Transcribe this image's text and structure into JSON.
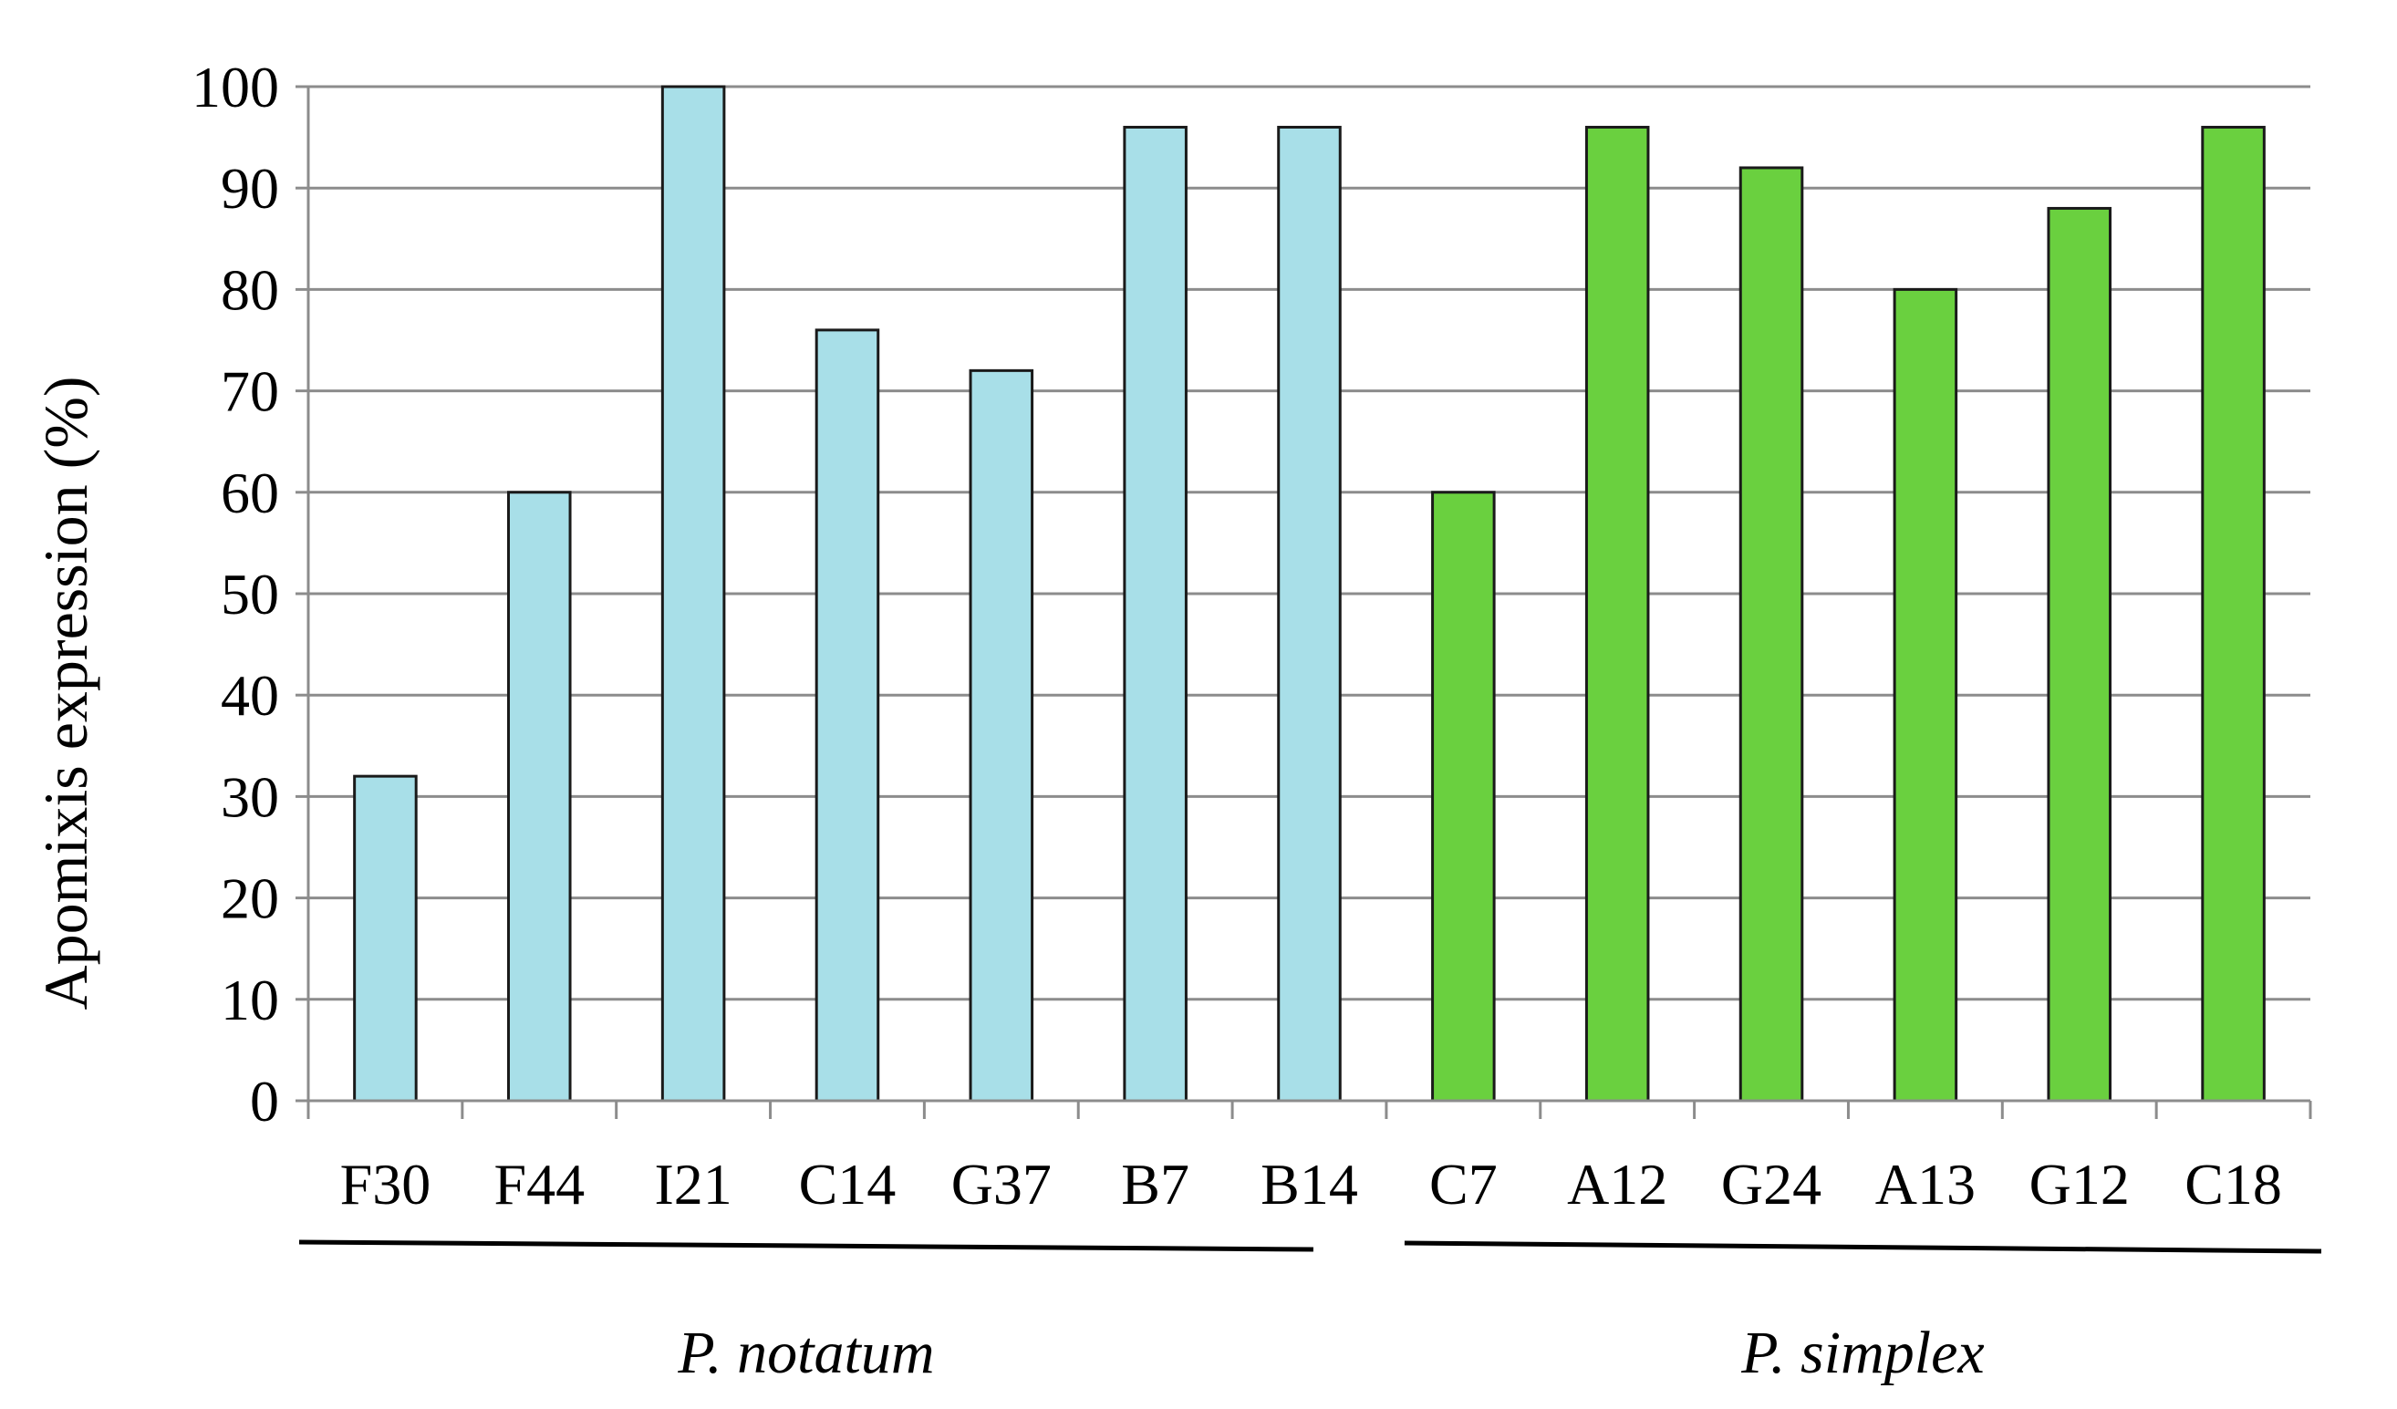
{
  "chart_data": {
    "type": "bar",
    "title": "",
    "xlabel": "",
    "ylabel": "Apomixis expression (%)",
    "ylim": [
      0,
      100
    ],
    "yticks": [
      0,
      10,
      20,
      30,
      40,
      50,
      60,
      70,
      80,
      90,
      100
    ],
    "categories": [
      "F30",
      "F44",
      "I21",
      "C14",
      "G37",
      "B7",
      "B14",
      "C7",
      "A12",
      "G24",
      "A13",
      "G12",
      "C18"
    ],
    "values": [
      32,
      60,
      100,
      76,
      72,
      96,
      96,
      60,
      96,
      92,
      80,
      88,
      96
    ],
    "groups": [
      {
        "label": "P. notatum",
        "start": 0,
        "end": 6,
        "color": "#a8dfe8"
      },
      {
        "label": "P. simplex",
        "start": 7,
        "end": 12,
        "color": "#6ad03f"
      }
    ],
    "grid": true,
    "legend": "none"
  },
  "colors": {
    "bar_edge": "#1a1a1a",
    "grid": "#8c8c8c",
    "axis": "#8c8c8c",
    "text": "#000000"
  }
}
